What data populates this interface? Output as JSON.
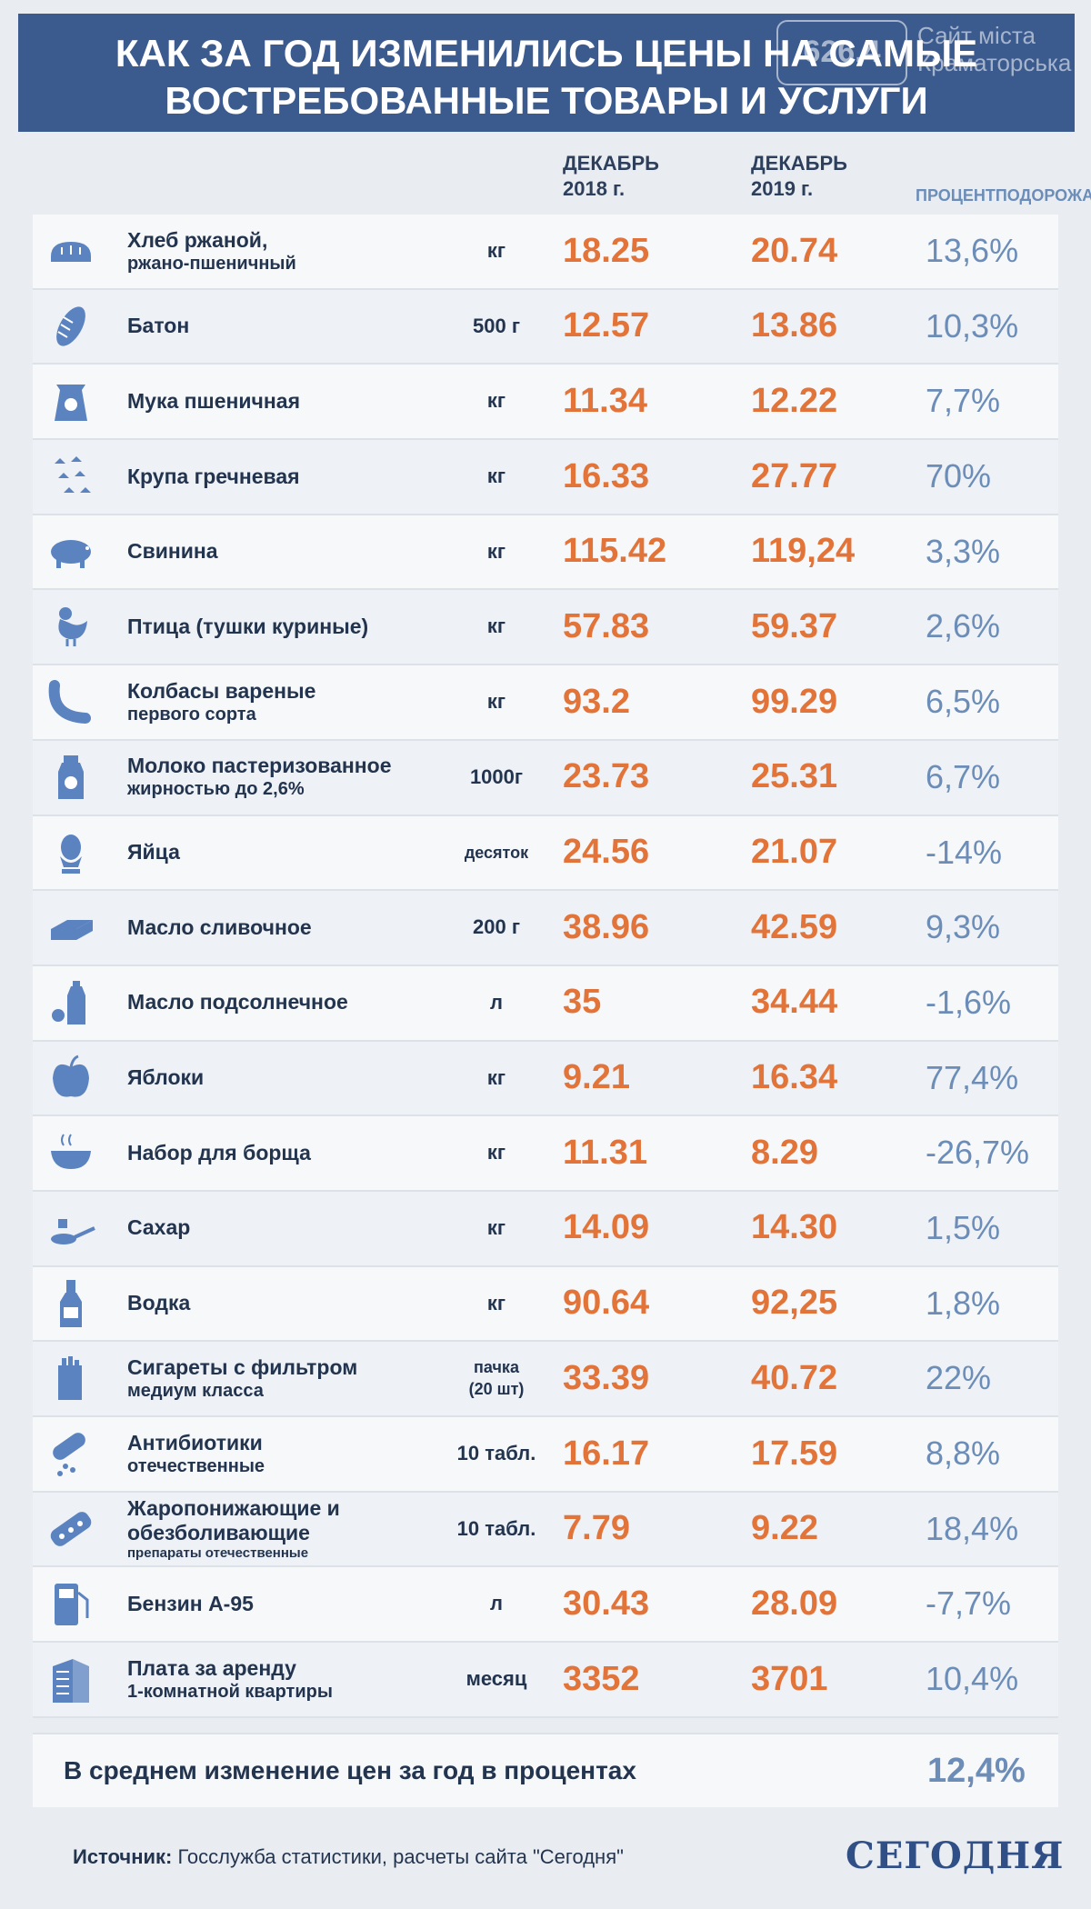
{
  "header": {
    "title_line1": "КАК ЗА ГОД ИЗМЕНИЛИСЬ ЦЕНЫ НА САМЫЕ",
    "title_line2": "ВОСТРЕБОВАННЫЕ ТОВАРЫ И УСЛУГИ"
  },
  "watermark": {
    "number": "626.4",
    "text": "Сайт міста Краматорська"
  },
  "columns": {
    "dec2018_line1": "ДЕКАБРЬ",
    "dec2018_line2": "2018 г.",
    "dec2019_line1": "ДЕКАБРЬ",
    "dec2019_line2": "2019 г.",
    "pct_line1": "ПРОЦЕНТ",
    "pct_line2": "ПОДОРОЖАНИЯ"
  },
  "items": [
    {
      "name": "Хлеб ржаной,",
      "name2": "ржано-пшеничный",
      "name3": "",
      "unit": "кг",
      "p2018": "18.25",
      "p2019": "20.74",
      "pct": "13,6%",
      "icon": "bread-icon"
    },
    {
      "name": "Батон",
      "name2": "",
      "name3": "",
      "unit": "500 г",
      "p2018": "12.57",
      "p2019": "13.86",
      "pct": "10,3%",
      "icon": "loaf-icon"
    },
    {
      "name": "Мука пшеничная",
      "name2": "",
      "name3": "",
      "unit": "кг",
      "p2018": "11.34",
      "p2019": "12.22",
      "pct": "7,7%",
      "icon": "flour-bag-icon"
    },
    {
      "name": "Крупа гречневая",
      "name2": "",
      "name3": "",
      "unit": "кг",
      "p2018": "16.33",
      "p2019": "27.77",
      "pct": "70%",
      "icon": "buckwheat-icon"
    },
    {
      "name": "Свинина",
      "name2": "",
      "name3": "",
      "unit": "кг",
      "p2018": "115.42",
      "p2019": "119,24",
      "pct": "3,3%",
      "icon": "pig-icon"
    },
    {
      "name": "Птица (тушки куриные)",
      "name2": "",
      "name3": "",
      "unit": "кг",
      "p2018": "57.83",
      "p2019": "59.37",
      "pct": "2,6%",
      "icon": "chicken-icon"
    },
    {
      "name": "Колбасы вареные",
      "name2": "первого сорта",
      "name3": "",
      "unit": "кг",
      "p2018": "93.2",
      "p2019": "99.29",
      "pct": "6,5%",
      "icon": "sausage-icon"
    },
    {
      "name": "Молоко пастеризованное",
      "name2": "жирностью до 2,6%",
      "name3": "",
      "unit": "1000г",
      "p2018": "23.73",
      "p2019": "25.31",
      "pct": "6,7%",
      "icon": "milk-bottle-icon"
    },
    {
      "name": "Яйца",
      "name2": "",
      "name3": "",
      "unit": "десяток",
      "p2018": "24.56",
      "p2019": "21.07",
      "pct": "-14%",
      "icon": "egg-icon"
    },
    {
      "name": "Масло сливочное",
      "name2": "",
      "name3": "",
      "unit": "200 г",
      "p2018": "38.96",
      "p2019": "42.59",
      "pct": "9,3%",
      "icon": "butter-icon"
    },
    {
      "name": "Масло подсолнечное",
      "name2": "",
      "name3": "",
      "unit": "л",
      "p2018": "35",
      "p2019": "34.44",
      "pct": "-1,6%",
      "icon": "oil-bottle-icon"
    },
    {
      "name": "Яблоки",
      "name2": "",
      "name3": "",
      "unit": "кг",
      "p2018": "9.21",
      "p2019": "16.34",
      "pct": "77,4%",
      "icon": "apple-icon"
    },
    {
      "name": "Набор для борща",
      "name2": "",
      "name3": "",
      "unit": "кг",
      "p2018": "11.31",
      "p2019": "8.29",
      "pct": "-26,7%",
      "icon": "soup-bowl-icon"
    },
    {
      "name": "Сахар",
      "name2": "",
      "name3": "",
      "unit": "кг",
      "p2018": "14.09",
      "p2019": "14.30",
      "pct": "1,5%",
      "icon": "sugar-spoon-icon"
    },
    {
      "name": "Водка",
      "name2": "",
      "name3": "",
      "unit": "кг",
      "p2018": "90.64",
      "p2019": "92,25",
      "pct": "1,8%",
      "icon": "vodka-bottle-icon"
    },
    {
      "name": "Сигареты с фильтром",
      "name2": "медиум класса",
      "name3": "",
      "unit": "пачка",
      "unit2": "(20 шт)",
      "p2018": "33.39",
      "p2019": "40.72",
      "pct": "22%",
      "icon": "cigarettes-icon"
    },
    {
      "name": "Антибиотики",
      "name2": "отечественные",
      "name3": "",
      "unit": "10 табл.",
      "p2018": "16.17",
      "p2019": "17.59",
      "pct": "8,8%",
      "icon": "capsule-icon"
    },
    {
      "name": "Жаропонижающие и",
      "name2": "обезболивающие",
      "name3": "препараты отечественные",
      "unit": "10 табл.",
      "p2018": "7.79",
      "p2019": "9.22",
      "pct": "18,4%",
      "icon": "pill-blister-icon"
    },
    {
      "name": "Бензин А-95",
      "name2": "",
      "name3": "",
      "unit": "л",
      "p2018": "30.43",
      "p2019": "28.09",
      "pct": "-7,7%",
      "icon": "fuel-pump-icon"
    },
    {
      "name": "Плата за аренду",
      "name2": "1-комнатной квартиры",
      "name3": "",
      "unit": "месяц",
      "p2018": "3352",
      "p2019": "3701",
      "pct": "10,4%",
      "icon": "apartment-building-icon"
    }
  ],
  "average": {
    "label": "В среднем изменение цен за год в процентах",
    "value": "12,4%"
  },
  "source": {
    "label": "Источник:",
    "text": " Госслужба статистики, расчеты сайта \"Сегодня\""
  },
  "logo": "СЕГОДНЯ",
  "colors": {
    "header_bg": "#3b5a8e",
    "price": "#e2743a",
    "percent": "#6b8db8",
    "icon": "#5b83c0",
    "text": "#23344f"
  }
}
